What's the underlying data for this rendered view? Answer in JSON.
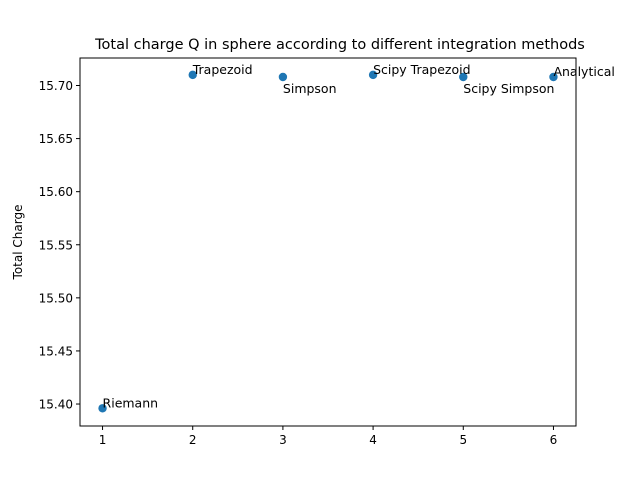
{
  "chart_data": {
    "type": "scatter",
    "title": "Total charge Q in sphere according to different integration methods",
    "xlabel": "",
    "ylabel": "Total Charge",
    "xlim": [
      0.75,
      6.25
    ],
    "ylim": [
      15.3793,
      15.7259
    ],
    "xticks": [
      1,
      2,
      3,
      4,
      5,
      6
    ],
    "xtick_labels": [
      "1",
      "2",
      "3",
      "4",
      "5",
      "6"
    ],
    "yticks": [
      15.4,
      15.45,
      15.5,
      15.55,
      15.6,
      15.65,
      15.7
    ],
    "ytick_labels": [
      "15.40",
      "15.45",
      "15.50",
      "15.55",
      "15.60",
      "15.65",
      "15.70"
    ],
    "grid": false,
    "points": [
      {
        "x": 1,
        "y": 15.396,
        "label": "Riemann",
        "label_offset": "above"
      },
      {
        "x": 2,
        "y": 15.71,
        "label": "Trapezoid",
        "label_offset": "above"
      },
      {
        "x": 3,
        "y": 15.708,
        "label": "Simpson",
        "label_offset": "below"
      },
      {
        "x": 4,
        "y": 15.71,
        "label": "Scipy Trapezoid",
        "label_offset": "above"
      },
      {
        "x": 5,
        "y": 15.708,
        "label": "Scipy Simpson",
        "label_offset": "below"
      },
      {
        "x": 6,
        "y": 15.708,
        "label": "Analytical",
        "label_offset": "above"
      }
    ],
    "marker_color": "#1f77b4"
  }
}
